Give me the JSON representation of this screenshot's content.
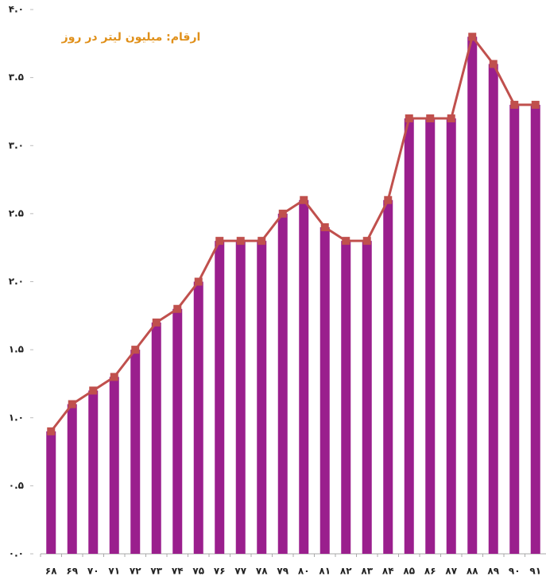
{
  "chart_data": {
    "type": "bar",
    "annotation": "ارقام: میلیون لیتر در روز",
    "categories": [
      "۶۸",
      "۶۹",
      "۷۰",
      "۷۱",
      "۷۲",
      "۷۳",
      "۷۴",
      "۷۵",
      "۷۶",
      "۷۷",
      "۷۸",
      "۷۹",
      "۸۰",
      "۸۱",
      "۸۲",
      "۸۳",
      "۸۴",
      "۸۵",
      "۸۶",
      "۸۷",
      "۸۸",
      "۸۹",
      "۹۰",
      "۹۱"
    ],
    "values": [
      0.9,
      1.1,
      1.2,
      1.3,
      1.5,
      1.7,
      1.8,
      2.0,
      2.3,
      2.3,
      2.3,
      2.5,
      2.6,
      2.4,
      2.3,
      2.3,
      2.6,
      3.2,
      3.2,
      3.2,
      3.8,
      3.6,
      3.3,
      3.3
    ],
    "color": "#9a1f8d",
    "line_color": "#c0504d",
    "ylim": [
      0,
      4.0
    ],
    "yticks": [
      {
        "value": 0,
        "label": "۰.۰"
      },
      {
        "value": 0.5,
        "label": "۰.۵"
      },
      {
        "value": 1.0,
        "label": "۱.۰"
      },
      {
        "value": 1.5,
        "label": "۱.۵"
      },
      {
        "value": 2.0,
        "label": "۲.۰"
      },
      {
        "value": 2.5,
        "label": "۲.۵"
      },
      {
        "value": 3.0,
        "label": "۳.۰"
      },
      {
        "value": 3.5,
        "label": "۳.۵"
      },
      {
        "value": 4.0,
        "label": "۴.۰"
      }
    ],
    "grid": false
  }
}
